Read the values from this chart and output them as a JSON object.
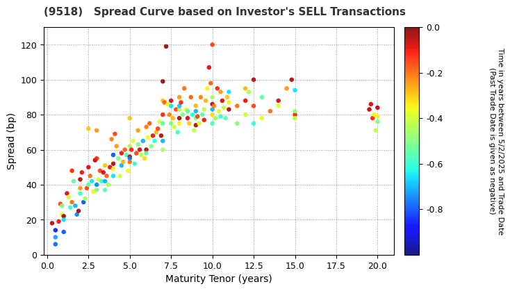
{
  "title": "(9518)   Spread Curve based on Investor's SELL Transactions",
  "xlabel": "Maturity Tenor (years)",
  "ylabel": "Spread (bp)",
  "colorbar_label": "Time in years between 5/2/2025 and Trade Date\n(Past Trade Date is given as negative)",
  "xlim": [
    -0.2,
    21.0
  ],
  "ylim": [
    0,
    130
  ],
  "xticks": [
    0.0,
    2.5,
    5.0,
    7.5,
    10.0,
    12.5,
    15.0,
    17.5,
    20.0
  ],
  "yticks": [
    0,
    20,
    40,
    60,
    80,
    100,
    120
  ],
  "cmap": "jet",
  "vmin": -1.0,
  "vmax": 0.0,
  "colorbar_ticks": [
    0.0,
    -0.2,
    -0.4,
    -0.6,
    -0.8
  ],
  "scatter_size": 22,
  "scatter_points": [
    [
      0.3,
      18,
      -0.05
    ],
    [
      0.5,
      14,
      -0.85
    ],
    [
      0.5,
      10,
      -0.72
    ],
    [
      0.5,
      6,
      -0.78
    ],
    [
      0.7,
      19,
      -0.1
    ],
    [
      0.8,
      29,
      -0.15
    ],
    [
      0.9,
      28,
      -0.5
    ],
    [
      0.9,
      23,
      -0.35
    ],
    [
      1.0,
      22,
      -0.02
    ],
    [
      1.0,
      20,
      -0.65
    ],
    [
      1.0,
      13,
      -0.8
    ],
    [
      1.2,
      35,
      -0.08
    ],
    [
      1.3,
      33,
      -0.4
    ],
    [
      1.4,
      27,
      -0.6
    ],
    [
      1.5,
      30,
      -0.2
    ],
    [
      1.5,
      48,
      -0.12
    ],
    [
      1.6,
      42,
      -0.55
    ],
    [
      1.7,
      28,
      -0.7
    ],
    [
      1.8,
      23,
      -0.75
    ],
    [
      1.9,
      25,
      -0.03
    ],
    [
      2.0,
      38,
      -0.25
    ],
    [
      2.0,
      43,
      -0.05
    ],
    [
      2.0,
      35,
      -0.6
    ],
    [
      2.1,
      47,
      -0.1
    ],
    [
      2.2,
      30,
      -0.8
    ],
    [
      2.3,
      32,
      -0.45
    ],
    [
      2.4,
      38,
      -0.15
    ],
    [
      2.5,
      50,
      -0.08
    ],
    [
      2.5,
      72,
      -0.3
    ],
    [
      2.5,
      40,
      -0.55
    ],
    [
      2.6,
      45,
      -0.2
    ],
    [
      2.7,
      42,
      -0.65
    ],
    [
      2.8,
      36,
      -0.35
    ],
    [
      2.9,
      54,
      -0.05
    ],
    [
      3.0,
      55,
      -0.12
    ],
    [
      3.0,
      40,
      -0.75
    ],
    [
      3.0,
      37,
      -0.5
    ],
    [
      3.0,
      71,
      -0.25
    ],
    [
      3.1,
      43,
      -0.4
    ],
    [
      3.2,
      48,
      -0.15
    ],
    [
      3.3,
      42,
      -0.6
    ],
    [
      3.4,
      47,
      -0.08
    ],
    [
      3.5,
      42,
      -0.7
    ],
    [
      3.5,
      51,
      -0.3
    ],
    [
      3.5,
      37,
      -0.55
    ],
    [
      3.6,
      45,
      -0.18
    ],
    [
      3.7,
      40,
      -0.45
    ],
    [
      3.8,
      50,
      -0.1
    ],
    [
      3.9,
      66,
      -0.22
    ],
    [
      4.0,
      52,
      -0.05
    ],
    [
      4.0,
      49,
      -0.35
    ],
    [
      4.0,
      45,
      -0.65
    ],
    [
      4.0,
      57,
      -0.8
    ],
    [
      4.1,
      69,
      -0.15
    ],
    [
      4.2,
      62,
      -0.25
    ],
    [
      4.3,
      55,
      -0.5
    ],
    [
      4.4,
      45,
      -0.4
    ],
    [
      4.5,
      58,
      -0.1
    ],
    [
      4.5,
      51,
      -0.7
    ],
    [
      4.6,
      53,
      -0.28
    ],
    [
      4.7,
      60,
      -0.18
    ],
    [
      4.8,
      57,
      -0.55
    ],
    [
      4.9,
      48,
      -0.35
    ],
    [
      5.0,
      56,
      -0.05
    ],
    [
      5.0,
      62,
      -0.45
    ],
    [
      5.0,
      55,
      -0.75
    ],
    [
      5.0,
      53,
      -0.2
    ],
    [
      5.0,
      78,
      -0.3
    ],
    [
      5.1,
      60,
      -0.12
    ],
    [
      5.2,
      65,
      -0.38
    ],
    [
      5.3,
      52,
      -0.6
    ],
    [
      5.4,
      58,
      -0.15
    ],
    [
      5.5,
      63,
      -0.5
    ],
    [
      5.5,
      71,
      -0.25
    ],
    [
      5.6,
      60,
      -0.08
    ],
    [
      5.7,
      57,
      -0.42
    ],
    [
      5.8,
      65,
      -0.7
    ],
    [
      5.9,
      55,
      -0.32
    ],
    [
      6.0,
      60,
      -0.05
    ],
    [
      6.0,
      73,
      -0.22
    ],
    [
      6.0,
      58,
      -0.55
    ],
    [
      6.1,
      67,
      -0.35
    ],
    [
      6.2,
      75,
      -0.18
    ],
    [
      6.3,
      62,
      -0.48
    ],
    [
      6.4,
      68,
      -0.1
    ],
    [
      6.5,
      65,
      -0.6
    ],
    [
      6.6,
      70,
      -0.28
    ],
    [
      6.7,
      72,
      -0.15
    ],
    [
      6.8,
      76,
      -0.4
    ],
    [
      6.9,
      68,
      -0.05
    ],
    [
      7.0,
      80,
      -0.12
    ],
    [
      7.0,
      88,
      -0.3
    ],
    [
      7.0,
      75,
      -0.55
    ],
    [
      7.0,
      65,
      -0.7
    ],
    [
      7.0,
      99,
      -0.02
    ],
    [
      7.0,
      60,
      -0.45
    ],
    [
      7.1,
      87,
      -0.18
    ],
    [
      7.2,
      119,
      -0.03
    ],
    [
      7.3,
      86,
      -0.35
    ],
    [
      7.4,
      80,
      -0.22
    ],
    [
      7.5,
      88,
      -0.08
    ],
    [
      7.5,
      75,
      -0.5
    ],
    [
      7.5,
      85,
      -0.65
    ],
    [
      7.6,
      78,
      -0.28
    ],
    [
      7.7,
      73,
      -0.4
    ],
    [
      7.8,
      83,
      -0.15
    ],
    [
      7.9,
      70,
      -0.58
    ],
    [
      8.0,
      78,
      -0.05
    ],
    [
      8.0,
      90,
      -0.25
    ],
    [
      8.0,
      83,
      -0.45
    ],
    [
      8.0,
      85,
      -0.68
    ],
    [
      8.0,
      75,
      -0.35
    ],
    [
      8.1,
      87,
      -0.12
    ],
    [
      8.2,
      80,
      -0.5
    ],
    [
      8.3,
      95,
      -0.2
    ],
    [
      8.4,
      83,
      -0.38
    ],
    [
      8.5,
      78,
      -0.08
    ],
    [
      8.5,
      82,
      -0.55
    ],
    [
      8.6,
      75,
      -0.3
    ],
    [
      8.7,
      90,
      -0.18
    ],
    [
      8.8,
      80,
      -0.62
    ],
    [
      8.9,
      71,
      -0.42
    ],
    [
      9.0,
      74,
      -0.05
    ],
    [
      9.0,
      85,
      -0.28
    ],
    [
      9.0,
      78,
      -0.5
    ],
    [
      9.0,
      82,
      -0.7
    ],
    [
      9.1,
      79,
      -0.15
    ],
    [
      9.2,
      75,
      -0.38
    ],
    [
      9.3,
      90,
      -0.22
    ],
    [
      9.4,
      80,
      -0.55
    ],
    [
      9.5,
      77,
      -0.1
    ],
    [
      9.5,
      83,
      -0.42
    ],
    [
      9.6,
      88,
      -0.28
    ],
    [
      9.7,
      95,
      -0.35
    ],
    [
      9.8,
      107,
      -0.08
    ],
    [
      9.9,
      98,
      -0.18
    ],
    [
      10.0,
      86,
      -0.05
    ],
    [
      10.0,
      80,
      -0.32
    ],
    [
      10.0,
      75,
      -0.58
    ],
    [
      10.0,
      83,
      -0.7
    ],
    [
      10.0,
      90,
      -0.45
    ],
    [
      10.0,
      120,
      -0.15
    ],
    [
      10.1,
      85,
      -0.22
    ],
    [
      10.2,
      78,
      -0.48
    ],
    [
      10.3,
      95,
      -0.12
    ],
    [
      10.4,
      82,
      -0.38
    ],
    [
      10.5,
      79,
      -0.6
    ],
    [
      10.5,
      93,
      -0.25
    ],
    [
      10.6,
      88,
      -0.08
    ],
    [
      10.7,
      84,
      -0.42
    ],
    [
      10.8,
      78,
      -0.55
    ],
    [
      10.9,
      90,
      -0.3
    ],
    [
      11.0,
      83,
      -0.05
    ],
    [
      11.0,
      87,
      -0.35
    ],
    [
      11.0,
      93,
      -0.65
    ],
    [
      11.5,
      85,
      -0.2
    ],
    [
      11.5,
      75,
      -0.5
    ],
    [
      12.0,
      88,
      -0.1
    ],
    [
      12.0,
      80,
      -0.4
    ],
    [
      12.0,
      95,
      -0.28
    ],
    [
      12.2,
      93,
      -0.45
    ],
    [
      12.5,
      85,
      -0.15
    ],
    [
      12.5,
      75,
      -0.6
    ],
    [
      12.5,
      100,
      -0.05
    ],
    [
      13.0,
      78,
      -0.35
    ],
    [
      13.0,
      90,
      -0.55
    ],
    [
      13.5,
      82,
      -0.2
    ],
    [
      14.0,
      88,
      -0.08
    ],
    [
      14.0,
      85,
      -0.38
    ],
    [
      14.5,
      95,
      -0.25
    ],
    [
      14.8,
      100,
      -0.05
    ],
    [
      15.0,
      80,
      -0.12
    ],
    [
      15.0,
      82,
      -0.48
    ],
    [
      15.0,
      78,
      -0.42
    ],
    [
      15.0,
      94,
      -0.65
    ],
    [
      19.5,
      83,
      -0.05
    ],
    [
      19.6,
      86,
      -0.08
    ],
    [
      19.7,
      78,
      -0.12
    ],
    [
      19.8,
      80,
      -0.35
    ],
    [
      19.9,
      71,
      -0.42
    ],
    [
      20.0,
      84,
      -0.05
    ],
    [
      20.0,
      79,
      -0.38
    ],
    [
      20.0,
      76,
      -0.5
    ]
  ]
}
